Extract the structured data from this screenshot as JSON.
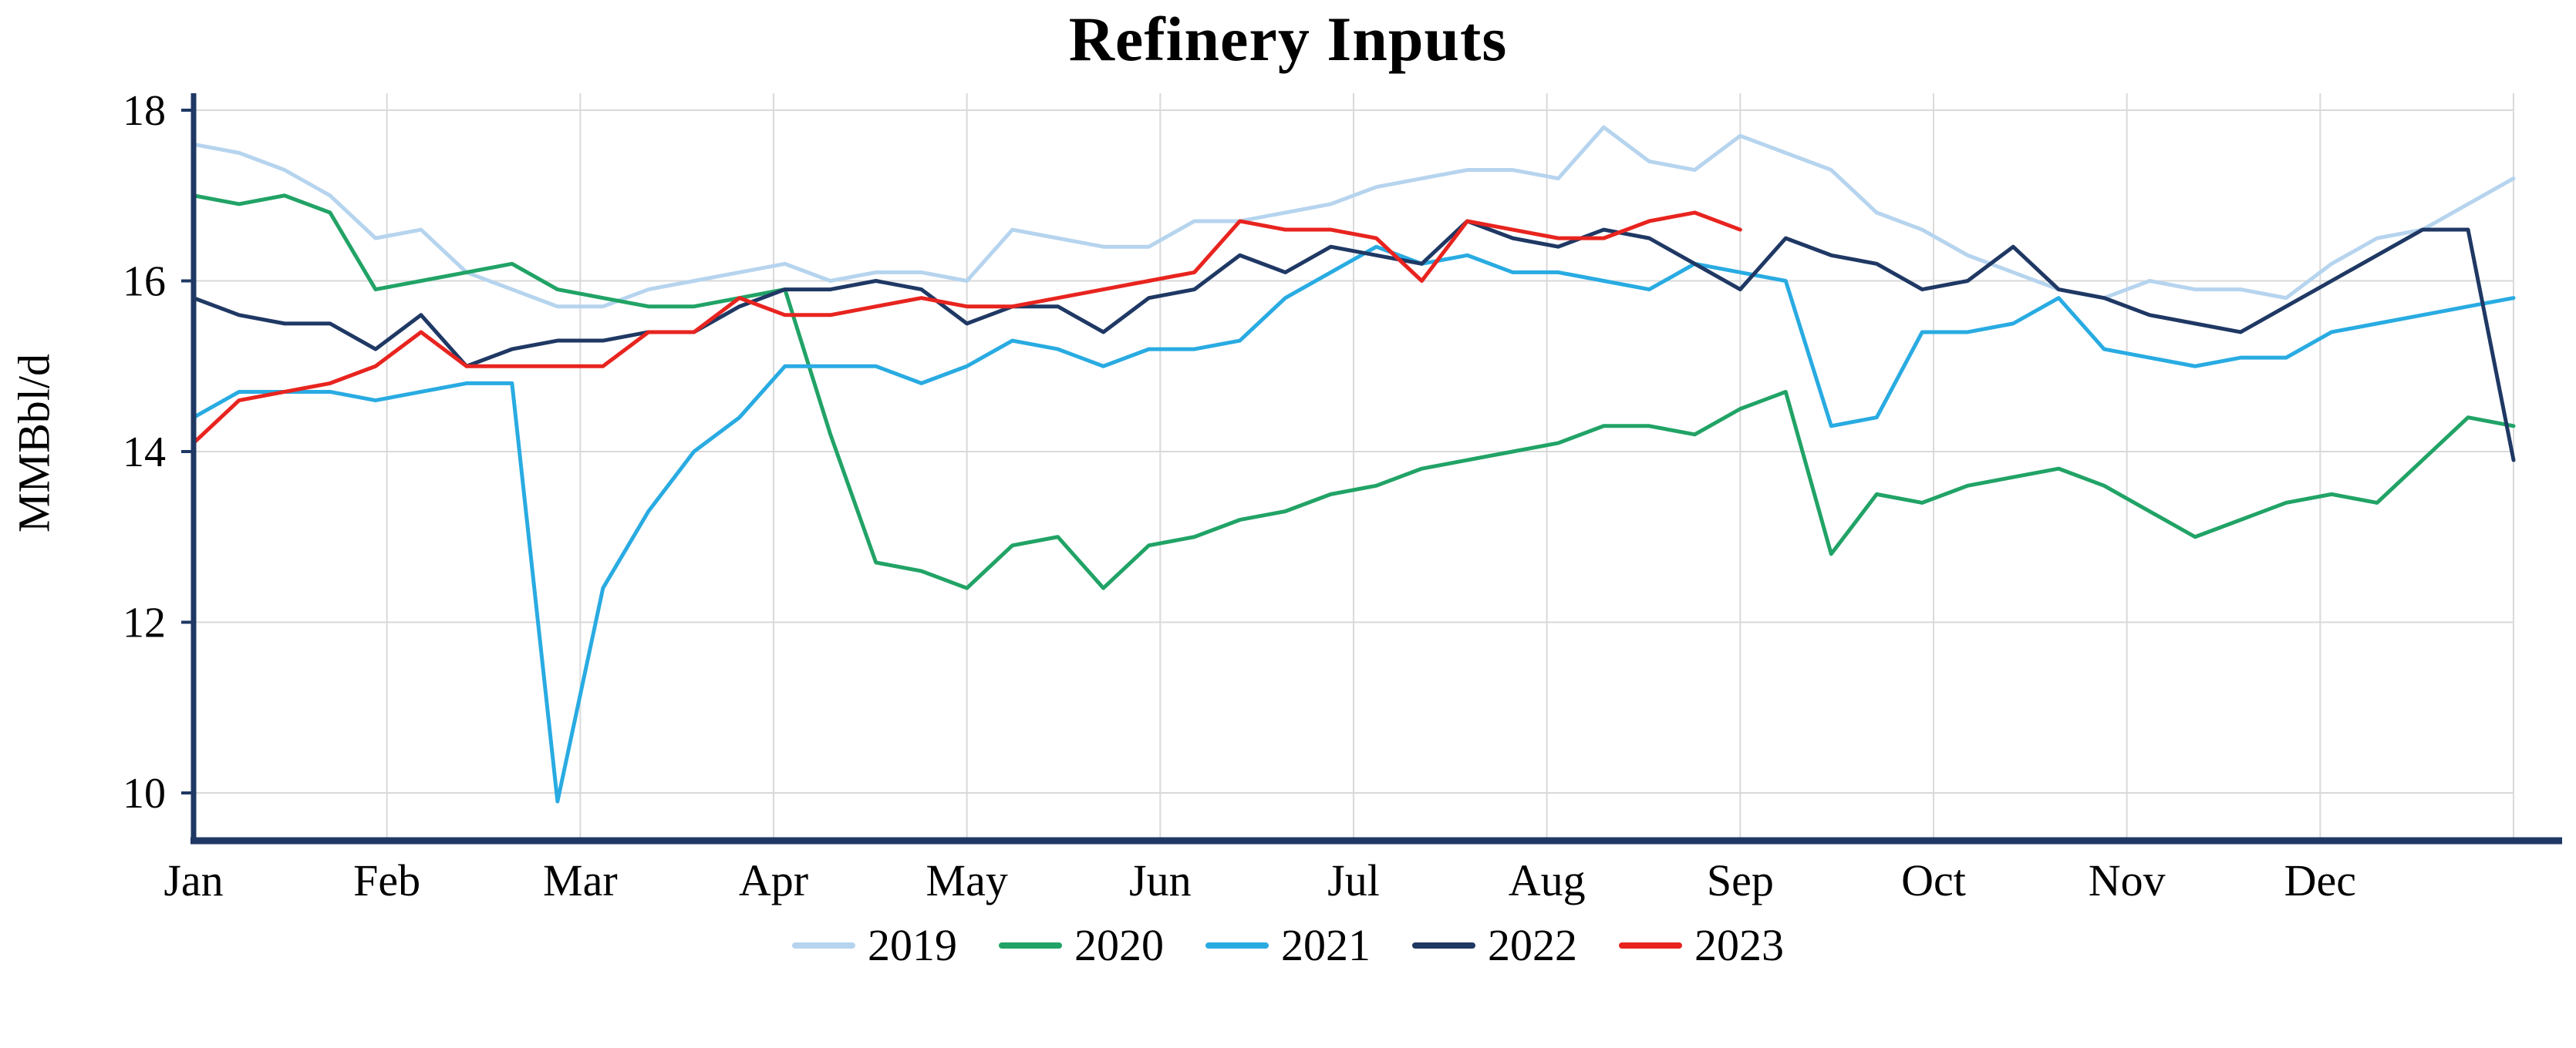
{
  "title": "Refinery Inputs",
  "chart_data": {
    "type": "line",
    "title": "Refinery Inputs",
    "ylabel": "MMBbl/d",
    "xlabel": "",
    "y_ticks": [
      10,
      12,
      14,
      16,
      18
    ],
    "ylim": [
      9.4,
      18.2
    ],
    "grid": true,
    "legend_position": "bottom",
    "x_unit": "weekly (52 points per year)",
    "categories": [
      "Jan",
      "Feb",
      "Mar",
      "Apr",
      "May",
      "Jun",
      "Jul",
      "Aug",
      "Sep",
      "Oct",
      "Nov",
      "Dec"
    ],
    "axis_color": "#1f3864",
    "grid_color": "#d9d9d9",
    "text_color": "#000000",
    "background": "#ffffff",
    "series": [
      {
        "name": "2019",
        "color": "#b6d4ee",
        "values": [
          17.6,
          17.5,
          17.3,
          17.0,
          16.5,
          16.6,
          16.1,
          15.9,
          15.7,
          15.7,
          15.9,
          16.0,
          16.1,
          16.2,
          16.0,
          16.1,
          16.1,
          16.0,
          16.6,
          16.5,
          16.4,
          16.4,
          16.7,
          16.7,
          16.8,
          16.9,
          17.1,
          17.2,
          17.3,
          17.3,
          17.2,
          17.8,
          17.4,
          17.3,
          17.7,
          17.5,
          17.3,
          16.8,
          16.6,
          16.3,
          16.1,
          15.9,
          15.8,
          16.0,
          15.9,
          15.9,
          15.8,
          16.2,
          16.5,
          16.6,
          16.9,
          17.2
        ]
      },
      {
        "name": "2020",
        "color": "#21a366",
        "values": [
          17.0,
          16.9,
          17.0,
          16.8,
          15.9,
          16.0,
          16.1,
          16.2,
          15.9,
          15.8,
          15.7,
          15.7,
          15.8,
          15.9,
          14.2,
          12.7,
          12.6,
          12.4,
          12.9,
          13.0,
          12.4,
          12.9,
          13.0,
          13.2,
          13.3,
          13.5,
          13.6,
          13.8,
          13.9,
          14.0,
          14.1,
          14.3,
          14.3,
          14.2,
          14.5,
          14.7,
          12.8,
          13.5,
          13.4,
          13.6,
          13.7,
          13.8,
          13.6,
          13.3,
          13.0,
          13.2,
          13.4,
          13.5,
          13.4,
          13.9,
          14.4,
          14.3
        ]
      },
      {
        "name": "2021",
        "color": "#29abe2",
        "values": [
          14.4,
          14.7,
          14.7,
          14.7,
          14.6,
          14.7,
          14.8,
          14.8,
          9.9,
          12.4,
          13.3,
          14.0,
          14.4,
          15.0,
          15.0,
          15.0,
          14.8,
          15.0,
          15.3,
          15.2,
          15.0,
          15.2,
          15.2,
          15.3,
          15.8,
          16.1,
          16.4,
          16.2,
          16.3,
          16.1,
          16.1,
          16.0,
          15.9,
          16.2,
          16.1,
          16.0,
          14.3,
          14.4,
          15.4,
          15.4,
          15.5,
          15.8,
          15.2,
          15.1,
          15.0,
          15.1,
          15.1,
          15.4,
          15.5,
          15.6,
          15.7,
          15.8
        ]
      },
      {
        "name": "2022",
        "color": "#1f3864",
        "values": [
          15.8,
          15.6,
          15.5,
          15.5,
          15.2,
          15.6,
          15.0,
          15.2,
          15.3,
          15.3,
          15.4,
          15.4,
          15.7,
          15.9,
          15.9,
          16.0,
          15.9,
          15.5,
          15.7,
          15.7,
          15.4,
          15.8,
          15.9,
          16.3,
          16.1,
          16.4,
          16.3,
          16.2,
          16.7,
          16.5,
          16.4,
          16.6,
          16.5,
          16.2,
          15.9,
          16.5,
          16.3,
          16.2,
          15.9,
          16.0,
          16.4,
          15.9,
          15.8,
          15.6,
          15.5,
          15.4,
          15.7,
          16.0,
          16.3,
          16.6,
          16.6,
          13.9
        ]
      },
      {
        "name": "2023",
        "color": "#e8241f",
        "values": [
          14.1,
          14.6,
          14.7,
          14.8,
          15.0,
          15.4,
          15.0,
          15.0,
          15.0,
          15.0,
          15.4,
          15.4,
          15.8,
          15.6,
          15.6,
          15.7,
          15.8,
          15.7,
          15.7,
          15.8,
          15.9,
          16.0,
          16.1,
          16.7,
          16.6,
          16.6,
          16.5,
          16.0,
          16.7,
          16.6,
          16.5,
          16.5,
          16.7,
          16.8,
          16.6
        ]
      }
    ]
  }
}
